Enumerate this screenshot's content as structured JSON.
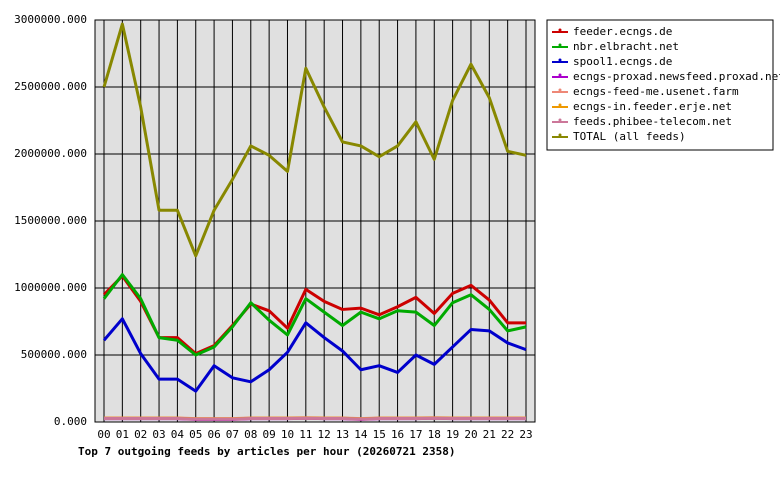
{
  "chart_data": {
    "type": "line",
    "title": "Top 7 outgoing feeds by articles per hour (20260721 2358)",
    "categories": [
      "00",
      "01",
      "02",
      "03",
      "04",
      "05",
      "06",
      "07",
      "08",
      "09",
      "10",
      "11",
      "12",
      "13",
      "14",
      "15",
      "16",
      "17",
      "18",
      "19",
      "20",
      "21",
      "22",
      "23"
    ],
    "ylim": [
      0,
      3000000
    ],
    "yticks": [
      {
        "value": 0,
        "label": "0.000"
      },
      {
        "value": 500000,
        "label": "500000.000"
      },
      {
        "value": 1000000,
        "label": "1000000.000"
      },
      {
        "value": 1500000,
        "label": "1500000.000"
      },
      {
        "value": 2000000,
        "label": "2000000.000"
      },
      {
        "value": 2500000,
        "label": "2500000.000"
      },
      {
        "value": 3000000,
        "label": "3000000.000"
      }
    ],
    "grid": true,
    "legend": "right",
    "series": [
      {
        "name": "feeder.ecngs.de",
        "color": "#cc0000",
        "values": [
          950000,
          1090000,
          900000,
          630000,
          630000,
          510000,
          570000,
          720000,
          880000,
          830000,
          700000,
          990000,
          900000,
          840000,
          850000,
          800000,
          860000,
          930000,
          810000,
          960000,
          1020000,
          910000,
          740000,
          740000
        ]
      },
      {
        "name": "nbr.elbracht.net",
        "color": "#00aa00",
        "values": [
          920000,
          1100000,
          920000,
          630000,
          610000,
          500000,
          560000,
          710000,
          890000,
          760000,
          650000,
          920000,
          820000,
          720000,
          820000,
          770000,
          830000,
          820000,
          720000,
          890000,
          950000,
          840000,
          680000,
          710000
        ]
      },
      {
        "name": "spool1.ecngs.de",
        "color": "#0000cc",
        "values": [
          610000,
          770000,
          510000,
          320000,
          320000,
          230000,
          420000,
          330000,
          300000,
          390000,
          520000,
          740000,
          630000,
          530000,
          390000,
          420000,
          370000,
          500000,
          430000,
          560000,
          690000,
          680000,
          590000,
          540000
        ]
      },
      {
        "name": "ecngs-proxad.newsfeed.proxad.net",
        "color": "#aa00cc",
        "values": [
          25000,
          25000,
          25000,
          25000,
          25000,
          20000,
          20000,
          20000,
          25000,
          25000,
          25000,
          28000,
          25000,
          25000,
          20000,
          25000,
          25000,
          25000,
          28000,
          25000,
          25000,
          25000,
          25000,
          25000
        ]
      },
      {
        "name": "ecngs-feed-me.usenet.farm",
        "color": "#ee8877",
        "values": [
          30000,
          30000,
          30000,
          30000,
          30000,
          25000,
          25000,
          25000,
          30000,
          30000,
          30000,
          32000,
          30000,
          30000,
          25000,
          30000,
          30000,
          30000,
          32000,
          30000,
          30000,
          30000,
          30000,
          30000
        ]
      },
      {
        "name": "ecngs-in.feeder.erje.net",
        "color": "#ee9900",
        "values": [
          28000,
          28000,
          28000,
          28000,
          28000,
          23000,
          23000,
          23000,
          28000,
          28000,
          28000,
          30000,
          28000,
          28000,
          23000,
          28000,
          28000,
          28000,
          30000,
          28000,
          28000,
          28000,
          28000,
          28000
        ]
      },
      {
        "name": "feeds.phibee-telecom.net",
        "color": "#cc7799",
        "values": [
          26000,
          26000,
          26000,
          26000,
          26000,
          21000,
          21000,
          21000,
          26000,
          26000,
          26000,
          28000,
          26000,
          26000,
          21000,
          26000,
          26000,
          26000,
          28000,
          26000,
          26000,
          26000,
          26000,
          26000
        ]
      },
      {
        "name": "TOTAL (all feeds)",
        "color": "#888800",
        "values": [
          2500000,
          2970000,
          2350000,
          1580000,
          1580000,
          1240000,
          1580000,
          1810000,
          2060000,
          1990000,
          1870000,
          2640000,
          2350000,
          2090000,
          2060000,
          1980000,
          2060000,
          2240000,
          1960000,
          2400000,
          2670000,
          2420000,
          2020000,
          1990000
        ]
      }
    ]
  }
}
